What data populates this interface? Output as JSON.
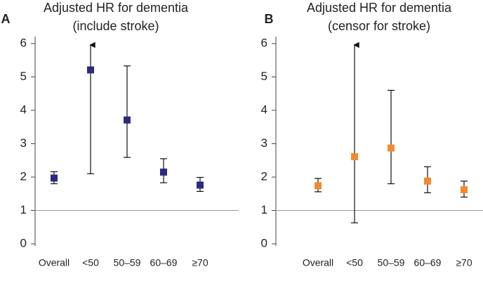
{
  "chart_data": [
    {
      "type": "errorbar",
      "panel": "A",
      "title": [
        "Adjusted HR for dementia",
        "(include stroke)"
      ],
      "categories": [
        "Overall",
        "<50",
        "50–59",
        "60–69",
        "≥70"
      ],
      "values": [
        1.97,
        5.21,
        3.71,
        2.15,
        1.76
      ],
      "lower": [
        1.8,
        2.1,
        2.59,
        1.83,
        1.57
      ],
      "upper": [
        2.16,
        null,
        5.33,
        2.55,
        1.99
      ],
      "color": "#2b2a7e",
      "ylim": [
        0,
        6.3
      ],
      "yticks": [
        0,
        1,
        2,
        3,
        4,
        5,
        6
      ],
      "reference_line": 1
    },
    {
      "type": "errorbar",
      "panel": "B",
      "title": [
        "Adjusted HR for dementia",
        "(censor for stroke)"
      ],
      "categories": [
        "Overall",
        "<50",
        "50–59",
        "60–69",
        "≥70"
      ],
      "values": [
        1.74,
        2.61,
        2.87,
        1.88,
        1.62
      ],
      "lower": [
        1.56,
        0.63,
        1.8,
        1.53,
        1.4
      ],
      "upper": [
        1.96,
        null,
        4.6,
        2.31,
        1.88
      ],
      "color": "#f28b30",
      "ylim": [
        0,
        6.3
      ],
      "yticks": [
        0,
        1,
        2,
        3,
        4,
        5,
        6
      ],
      "reference_line": 1
    }
  ]
}
